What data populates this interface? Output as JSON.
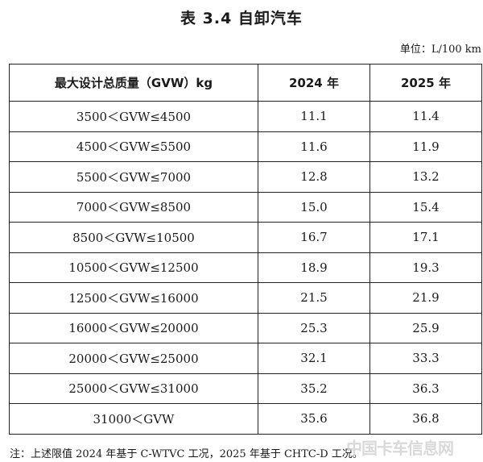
{
  "title": "表 3.4 自卸汽车",
  "unit": "单位：L/100 km",
  "table": {
    "headers": [
      "最大设计总质量（GVW）kg",
      "2024 年",
      "2025 年"
    ],
    "rows": [
      [
        "3500＜GVW≤4500",
        "11.1",
        "11.4"
      ],
      [
        "4500＜GVW≤5500",
        "11.6",
        "11.9"
      ],
      [
        "5500＜GVW≤7000",
        "12.8",
        "13.2"
      ],
      [
        "7000＜GVW≤8500",
        "15.0",
        "15.4"
      ],
      [
        "8500＜GVW≤10500",
        "16.7",
        "17.1"
      ],
      [
        "10500＜GVW≤12500",
        "18.9",
        "19.3"
      ],
      [
        "12500＜GVW≤16000",
        "21.5",
        "21.9"
      ],
      [
        "16000＜GVW≤20000",
        "25.3",
        "25.9"
      ],
      [
        "20000＜GVW≤25000",
        "32.1",
        "33.3"
      ],
      [
        "25000＜GVW≤31000",
        "35.2",
        "36.3"
      ],
      [
        "31000＜GVW",
        "35.6",
        "36.8"
      ]
    ]
  },
  "note": "注：上述限值 2024 年基于 C-WTVC 工况，2025 年基于 CHTC-D 工况。",
  "watermark": "中国卡车信息网"
}
